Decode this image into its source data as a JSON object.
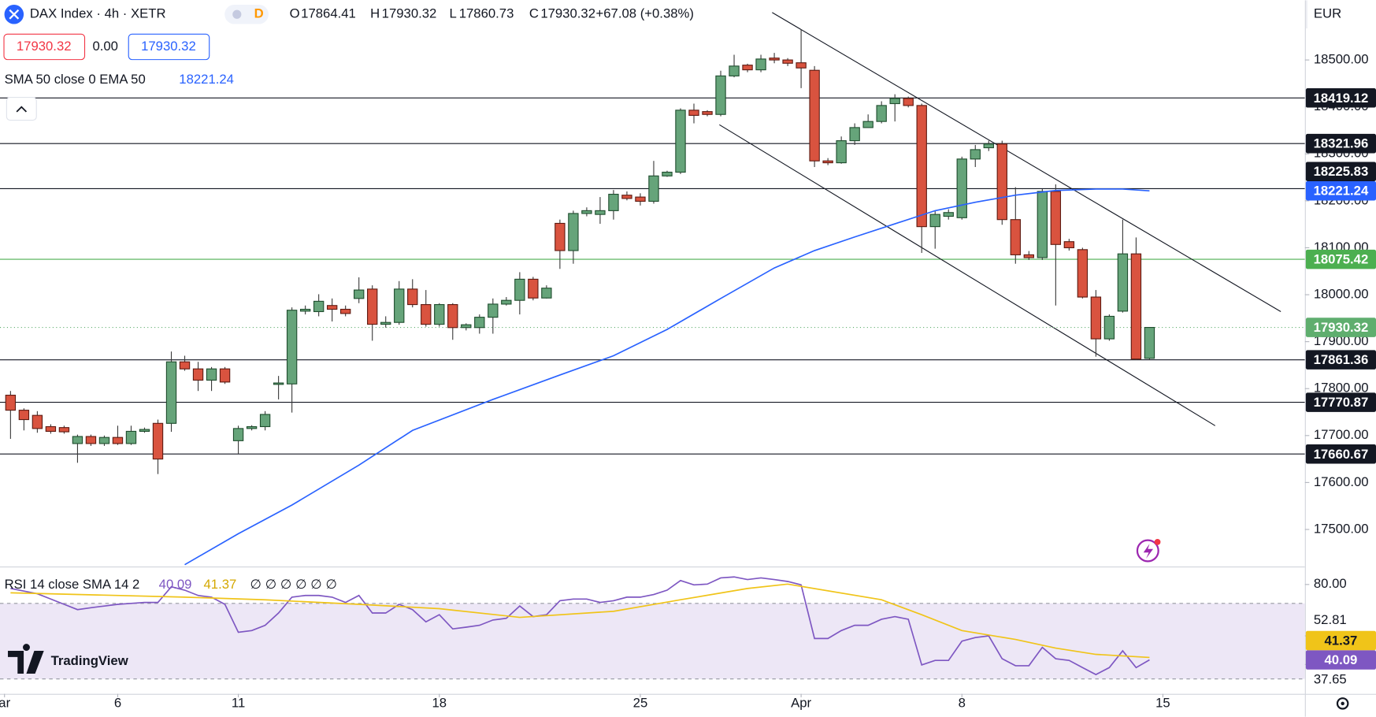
{
  "header": {
    "symbol": "DAX Index · 4h · XETR",
    "interval_badge": "D",
    "ohlc_labels": [
      "O",
      "H",
      "L",
      "C"
    ],
    "change": "+67.08 (+0.38%)",
    "spread": "0.00",
    "currency": "EUR",
    "logo": "TradingView"
  },
  "chart_data": [
    {
      "type": "candlestick",
      "up_color": "#66a47a",
      "down_color": "#d9533f",
      "last_price_color": "#5fae6e",
      "xlim": [
        -0.786,
        96.14
      ],
      "ylim": [
        17421,
        18627
      ],
      "xticks": [
        {
          "value": -0.45,
          "label": "ar"
        },
        {
          "value": 8,
          "label": "6"
        },
        {
          "value": 17,
          "label": "11"
        },
        {
          "value": 32,
          "label": "18"
        },
        {
          "value": 47,
          "label": "25"
        },
        {
          "value": 59,
          "label": "Apr"
        },
        {
          "value": 71,
          "label": "8"
        },
        {
          "value": 86,
          "label": "15"
        }
      ],
      "yticks": [
        {
          "value": 17500,
          "label": "17500.00"
        },
        {
          "value": 17600,
          "label": "17600.00"
        },
        {
          "value": 17700,
          "label": "17700.00"
        },
        {
          "value": 17800,
          "label": "17800.00"
        },
        {
          "value": 17900,
          "label": "17900.00"
        },
        {
          "value": 18000,
          "label": "18000.00"
        },
        {
          "value": 18100,
          "label": "18100.00"
        },
        {
          "value": 18200,
          "label": "18200.00"
        },
        {
          "value": 18300,
          "label": "18300.00"
        },
        {
          "value": 18400,
          "label": "18400.00"
        },
        {
          "value": 18500,
          "label": "18500.00"
        }
      ],
      "open": [
        17786,
        17754,
        17743,
        17719,
        17717,
        17683,
        17698,
        17683,
        17696,
        17683,
        17709,
        17726,
        17726,
        17857,
        17842,
        17818,
        17842,
        17689,
        17715,
        17719,
        17809,
        17810,
        17965,
        17964,
        17977,
        17969,
        17992,
        18012,
        17937,
        17941,
        18012,
        17979,
        17937,
        17979,
        17930,
        17930,
        17952,
        17980,
        17988,
        18033,
        17993,
        18152,
        18094,
        18173,
        18171,
        18179,
        18212,
        18208,
        18199,
        18253,
        18261,
        18393,
        18390,
        18384,
        18466,
        18489,
        18479,
        18504,
        18500,
        18494,
        18478,
        18285,
        18281,
        18328,
        18356,
        18369,
        18407,
        18418,
        18403,
        18145,
        18167,
        18164,
        18289,
        18313,
        18321,
        18160,
        18085,
        18079,
        18220,
        18113,
        18096,
        17995,
        17906,
        17965,
        18087,
        17864.41
      ],
      "high": [
        17795,
        17758,
        17752,
        17724,
        17721,
        17702,
        17702,
        17700,
        17721,
        17721,
        17717,
        17734,
        17879,
        17870,
        17857,
        17846,
        17846,
        17721,
        17722,
        17752,
        17827,
        17973,
        17977,
        18001,
        17992,
        17977,
        18037,
        18020,
        17954,
        18029,
        18033,
        18010,
        17982,
        17982,
        17939,
        17958,
        17992,
        17995,
        18048,
        18038,
        18020,
        18160,
        18179,
        18186,
        18208,
        18223,
        18220,
        18216,
        18285,
        18264,
        18397,
        18407,
        18393,
        18477,
        18511,
        18492,
        18511,
        18515,
        18504,
        18565,
        18487,
        18291,
        18337,
        18365,
        18384,
        18412,
        18427,
        18422,
        18407,
        18179,
        18182,
        18294,
        18319,
        18328,
        18328,
        18229,
        18093,
        18225,
        18235,
        18119,
        18100,
        18010,
        17958,
        18160,
        18122,
        17930.32
      ],
      "low": [
        17693,
        17711,
        17706,
        17704,
        17704,
        17642,
        17678,
        17678,
        17680,
        17680,
        17706,
        17618,
        17708,
        17838,
        17795,
        17795,
        17810,
        17661,
        17711,
        17711,
        17777,
        17749,
        17958,
        17954,
        17943,
        17954,
        17982,
        17902,
        17930,
        17936,
        17973,
        17932,
        17932,
        17904,
        17924,
        17917,
        17917,
        17977,
        17958,
        17988,
        17992,
        18055,
        18066,
        18167,
        18151,
        18160,
        18201,
        18190,
        18194,
        18251,
        18257,
        18365,
        18380,
        18380,
        18463,
        18474,
        18474,
        18493,
        18487,
        18440,
        18272,
        18276,
        18279,
        18319,
        18361,
        18365,
        18369,
        18399,
        18089,
        18098,
        18160,
        18160,
        18272,
        18306,
        18149,
        18066,
        18074,
        18074,
        17977,
        18094,
        17992,
        17868,
        17902,
        17962,
        17861,
        17860.73
      ],
      "close": [
        17754,
        17734,
        17715,
        17709,
        17708,
        17698,
        17683,
        17696,
        17683,
        17709,
        17713,
        17650,
        17857,
        17842,
        17818,
        17842,
        17814,
        17715,
        17719,
        17745,
        17812,
        17967,
        17969,
        17986,
        17969,
        17960,
        18010,
        17937,
        17941,
        18012,
        17979,
        17937,
        17979,
        17930,
        17936,
        17952,
        17980,
        17988,
        18033,
        17993,
        18014,
        18094,
        18173,
        18179,
        18179,
        18214,
        18205,
        18199,
        18253,
        18261,
        18393,
        18382,
        18384,
        18466,
        18487,
        18479,
        18502,
        18500,
        18493,
        18483,
        18285,
        18281,
        18328,
        18356,
        18369,
        18403,
        18418,
        18403,
        18145,
        18171,
        18175,
        18289,
        18309,
        18321,
        18160,
        18085,
        18079,
        18220,
        18107,
        18100,
        17995,
        17906,
        17954,
        18087,
        17863,
        17930.32
      ],
      "series": [
        {
          "name": "SMA 50 close 0 EMA 50",
          "color": "#2962ff",
          "x": [
            13,
            17,
            21,
            26,
            30,
            36,
            41,
            45,
            49,
            53,
            57,
            60,
            63,
            66,
            69,
            72,
            75,
            78,
            81,
            83,
            85
          ],
          "values": [
            17425,
            17491,
            17552,
            17637,
            17711,
            17777,
            17829,
            17870,
            17926,
            17992,
            18057,
            18094,
            18123,
            18151,
            18179,
            18197,
            18212,
            18222,
            18225,
            18225,
            18221.24
          ]
        }
      ],
      "levels": [
        {
          "value": 18419.12,
          "color": "#131722"
        },
        {
          "value": 18321.96,
          "color": "#131722"
        },
        {
          "value": 18225.83,
          "color": "#131722"
        },
        {
          "value": 18075.42,
          "color": "#4caf50"
        },
        {
          "value": 17861.36,
          "color": "#131722"
        },
        {
          "value": 17770.87,
          "color": "#131722"
        },
        {
          "value": 17660.67,
          "color": "#131722"
        }
      ],
      "trendlines": [
        {
          "x": [
            56.84,
            94.8
          ],
          "values": [
            18601,
            17964
          ]
        },
        {
          "x": [
            52.9,
            89.9
          ],
          "values": [
            18362,
            17721
          ]
        }
      ]
    },
    {
      "type": "line",
      "title": "RSI 14 close SMA 14 2",
      "placeholders": "∅ ∅ ∅ ∅ ∅ ∅",
      "ylim": [
        22.1,
        89.5
      ],
      "bands": [
        30,
        70
      ],
      "band_fill": "#ede7f6",
      "yticks": [
        {
          "value": 80,
          "label": "80.00"
        },
        {
          "value": 52.81,
          "label": "52.81"
        },
        {
          "value": 37.65,
          "label": "37.65"
        }
      ],
      "series": [
        {
          "color": "#7e57c2",
          "values": [
            77.9,
            76.5,
            75.1,
            72.3,
            69.5,
            66.7,
            67.7,
            68.6,
            69.5,
            70.0,
            70.5,
            70.5,
            78.8,
            77.0,
            74.2,
            73.3,
            69.5,
            54.7,
            55.6,
            58.4,
            64.9,
            73.3,
            74.2,
            74.2,
            73.3,
            70.5,
            74.2,
            64.9,
            64.9,
            69.5,
            66.7,
            60.2,
            64.0,
            56.5,
            57.4,
            58.4,
            61.2,
            62.1,
            68.6,
            63.0,
            64.0,
            71.4,
            72.3,
            72.3,
            70.5,
            71.4,
            73.3,
            73.3,
            74.7,
            77.0,
            82.1,
            79.8,
            80.2,
            83.5,
            84.0,
            82.6,
            83.5,
            82.6,
            81.6,
            79.8,
            51.4,
            51.4,
            55.6,
            58.4,
            58.4,
            61.6,
            63.0,
            61.6,
            37.4,
            39.8,
            39.8,
            50.0,
            51.9,
            52.8,
            40.7,
            37.0,
            37.0,
            46.7,
            40.7,
            39.8,
            36.0,
            32.3,
            36.0,
            44.9,
            36.0,
            40.09
          ]
        },
        {
          "color": "#f0c419",
          "x": [
            0,
            13,
            19,
            26,
            32,
            38,
            45,
            50,
            55,
            58,
            65,
            68,
            71,
            75,
            78,
            81,
            85
          ],
          "values": [
            75.6,
            73.3,
            71.9,
            69.5,
            67.2,
            62.6,
            65.8,
            71.9,
            77.9,
            80.2,
            71.9,
            64.0,
            55.6,
            50.9,
            46.3,
            43.0,
            41.37
          ]
        }
      ]
    }
  ]
}
